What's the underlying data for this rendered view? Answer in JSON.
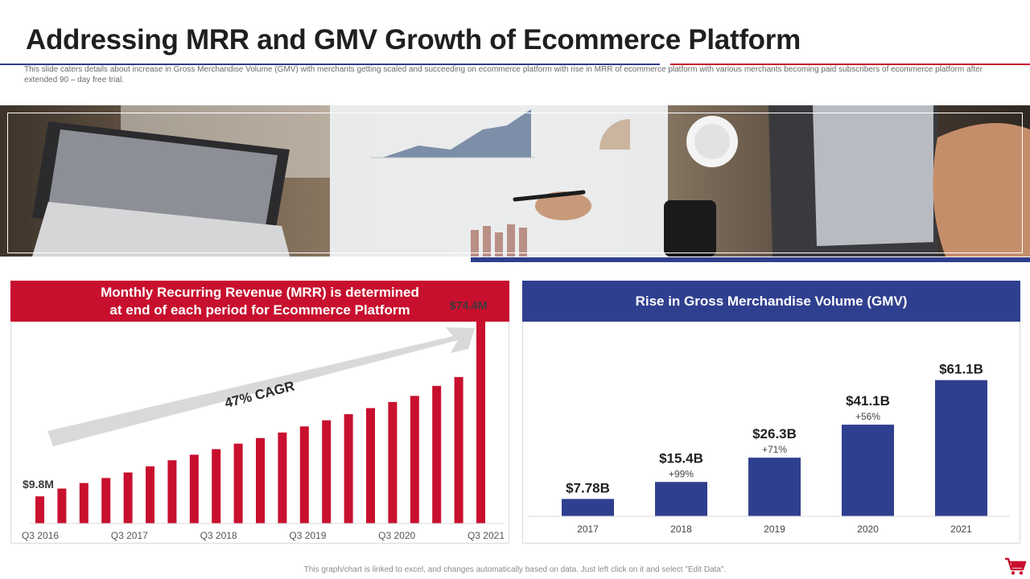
{
  "slide": {
    "title": "Addressing MRR and GMV Growth of Ecommerce Platform",
    "subtitle": "This slide caters details about increase in Gross Merchandise Volume (GMV) with merchants getting scaled and succeeding on ecommerce platform with rise in MRR  of ecommerce platform with various merchants becoming paid subscribers of ecommerce platform after extended 90 – day  free trial.",
    "footnote": "This graph/chart is linked to excel, and changes automatically based on data. Just left click on it and select \"Edit Data\".",
    "banner_image": "business-desk-photo",
    "accent_red": "#c8102e",
    "accent_blue": "#2f3f8f"
  },
  "mrr_panel": {
    "header_line1": "Monthly Recurring Revenue (MRR) is determined",
    "header_line2": "at end of each period for Ecommerce Platform",
    "cagr_label": "47% CAGR"
  },
  "gmv_panel": {
    "header": "Rise in Gross Merchandise Volume (GMV)"
  },
  "chart_data": [
    {
      "type": "bar",
      "title": "Monthly Recurring Revenue (MRR) is determined at end of each period for Ecommerce Platform",
      "tick_labels": [
        "Q3 2016",
        "Q3 2017",
        "Q3 2018",
        "Q3 2019",
        "Q3 2020",
        "Q3 2021"
      ],
      "values": [
        9.8,
        12.6,
        14.6,
        16.4,
        18.4,
        20.6,
        22.8,
        24.8,
        26.8,
        28.8,
        30.8,
        32.8,
        35.0,
        37.2,
        39.4,
        41.6,
        43.8,
        46.0,
        49.6,
        52.8,
        74.4
      ],
      "data_labels": [
        {
          "index": 0,
          "text": "$9.8M"
        },
        {
          "index": 20,
          "text": "$74.4M"
        }
      ],
      "annotation": "47% CAGR",
      "unit": "$M",
      "color": "#c8102e",
      "ylim": [
        0,
        80
      ],
      "grid": false
    },
    {
      "type": "bar",
      "title": "Rise in Gross Merchandise Volume (GMV)",
      "categories": [
        "2017",
        "2018",
        "2019",
        "2020",
        "2021"
      ],
      "values": [
        7.78,
        15.4,
        26.3,
        41.1,
        61.1
      ],
      "data_labels": [
        "$7.78B",
        "$15.4B",
        "$26.3B",
        "$41.1B",
        "$61.1B"
      ],
      "growth_labels": [
        "",
        "+99%",
        "+71%",
        "+56%",
        ""
      ],
      "unit": "$B",
      "color": "#2f3f8f",
      "ylim": [
        0,
        70
      ],
      "grid": false
    }
  ]
}
